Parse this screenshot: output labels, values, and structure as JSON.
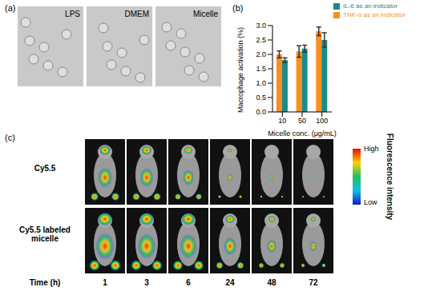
{
  "panel_labels": [
    "(a)",
    "(b)",
    "(c)"
  ],
  "panel_a": {
    "images": [
      "LPS",
      "DMEM",
      "Micelle"
    ]
  },
  "chart_data": {
    "type": "bar",
    "x_label": "Micelle conc. (μg/mL)",
    "y_label": "Macrophage activation (%)",
    "categories": [
      "10",
      "50",
      "100"
    ],
    "series": [
      {
        "name": "TNK-α as an indicator",
        "color": "#f7901e",
        "values": [
          2.0,
          2.1,
          2.8
        ],
        "errors": [
          0.12,
          0.2,
          0.15
        ]
      },
      {
        "name": "IL-6 as an indicator",
        "color": "#1b8a8c",
        "values": [
          1.8,
          2.2,
          2.5
        ],
        "errors": [
          0.08,
          0.12,
          0.25
        ]
      }
    ],
    "ylim": [
      0,
      3
    ],
    "yticks": [
      {
        "value": 0,
        "label": "0.0"
      },
      0.5,
      {
        "value": 1,
        "label": "1.0"
      },
      1.5,
      {
        "value": 2,
        "label": "2.0"
      },
      2.5,
      {
        "value": 3,
        "label": "3.0"
      }
    ],
    "grid": false,
    "legend": "top right"
  },
  "panel_c": {
    "rows": [
      "Cy5.5",
      "Cy5.5 labeled micelle"
    ],
    "time_label": "Time (h)",
    "times": [
      1,
      3,
      6,
      24,
      48,
      72
    ],
    "colorbar": {
      "high": "High",
      "low": "Low",
      "title": "Fluorescence intensity"
    }
  }
}
